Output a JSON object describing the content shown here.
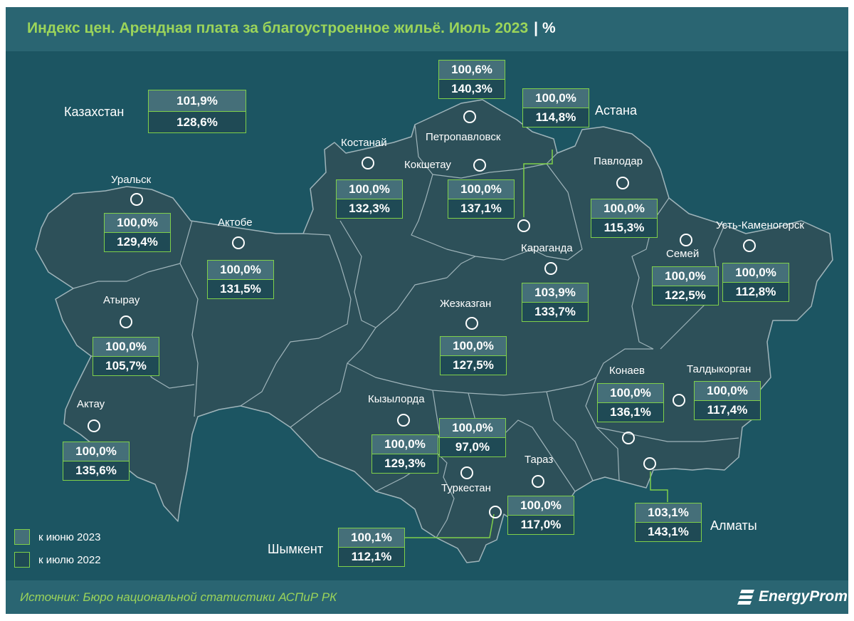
{
  "title": "Индекс цен. Арендная плата за благоустроенное жильё. Июль 2023",
  "title_separator": "|",
  "title_unit": "%",
  "source": "Источник: Бюро национальной статистики АСПиР РК",
  "brand": "EnergyProm",
  "colors": {
    "background": "#1c5562",
    "header_band": "#2a6572",
    "title_green": "#9bd45a",
    "box_border": "#7fd04a",
    "june_fill": "#456f79",
    "july_fill": "#1f4a55",
    "land": "#2d5059"
  },
  "legend": [
    {
      "label": "к июню 2023",
      "swatch": "june"
    },
    {
      "label": "к июлю 2022",
      "swatch": "july"
    }
  ],
  "country": {
    "name": "Казахстан",
    "to_june_2023": "101,9%",
    "to_july_2022": "128,6%"
  },
  "regions": [
    {
      "key": "uralsk",
      "name": "Уральск",
      "to_june_2023": "100,0%",
      "to_july_2022": "129,4%"
    },
    {
      "key": "aktobe",
      "name": "Актобе",
      "to_june_2023": "100,0%",
      "to_july_2022": "131,5%"
    },
    {
      "key": "atyrau",
      "name": "Атырау",
      "to_june_2023": "100,0%",
      "to_july_2022": "105,7%"
    },
    {
      "key": "aktau",
      "name": "Актау",
      "to_june_2023": "100,0%",
      "to_july_2022": "135,6%"
    },
    {
      "key": "kostanay",
      "name": "Костанай",
      "to_june_2023": "100,0%",
      "to_july_2022": "132,3%"
    },
    {
      "key": "petropavlovsk",
      "name": "Петропавловск",
      "to_june_2023": "100,6%",
      "to_july_2022": "140,3%"
    },
    {
      "key": "kokshetau",
      "name": "Кокшетау",
      "to_june_2023": "100,0%",
      "to_july_2022": "137,1%"
    },
    {
      "key": "astana",
      "name": "Астана",
      "to_june_2023": "100,0%",
      "to_july_2022": "114,8%"
    },
    {
      "key": "pavlodar",
      "name": "Павлодар",
      "to_june_2023": "100,0%",
      "to_july_2022": "115,3%"
    },
    {
      "key": "karaganda",
      "name": "Караганда",
      "to_june_2023": "103,9%",
      "to_july_2022": "133,7%"
    },
    {
      "key": "zhezkazgan",
      "name": "Жезказган",
      "to_june_2023": "100,0%",
      "to_july_2022": "127,5%"
    },
    {
      "key": "semey",
      "name": "Семей",
      "to_june_2023": "100,0%",
      "to_july_2022": "122,5%"
    },
    {
      "key": "ust_kamenogorsk",
      "name": "Усть-Каменогорск",
      "to_june_2023": "100,0%",
      "to_july_2022": "112,8%"
    },
    {
      "key": "konaev",
      "name": "Конаев",
      "to_june_2023": "100,0%",
      "to_july_2022": "136,1%"
    },
    {
      "key": "taldykorgan",
      "name": "Талдыкорган",
      "to_june_2023": "100,0%",
      "to_july_2022": "117,4%"
    },
    {
      "key": "kyzylorda",
      "name": "Кызылорда",
      "to_june_2023": "100,0%",
      "to_july_2022": "129,3%"
    },
    {
      "key": "turkestan",
      "name": "Туркестан",
      "to_june_2023": "100,0%",
      "to_july_2022": "97,0%"
    },
    {
      "key": "taraz",
      "name": "Тараз",
      "to_june_2023": "100,0%",
      "to_july_2022": "117,0%"
    },
    {
      "key": "almaty",
      "name": "Алматы",
      "to_june_2023": "103,1%",
      "to_july_2022": "143,1%"
    },
    {
      "key": "shymkent",
      "name": "Шымкент",
      "to_june_2023": "100,1%",
      "to_july_2022": "112,1%"
    }
  ]
}
